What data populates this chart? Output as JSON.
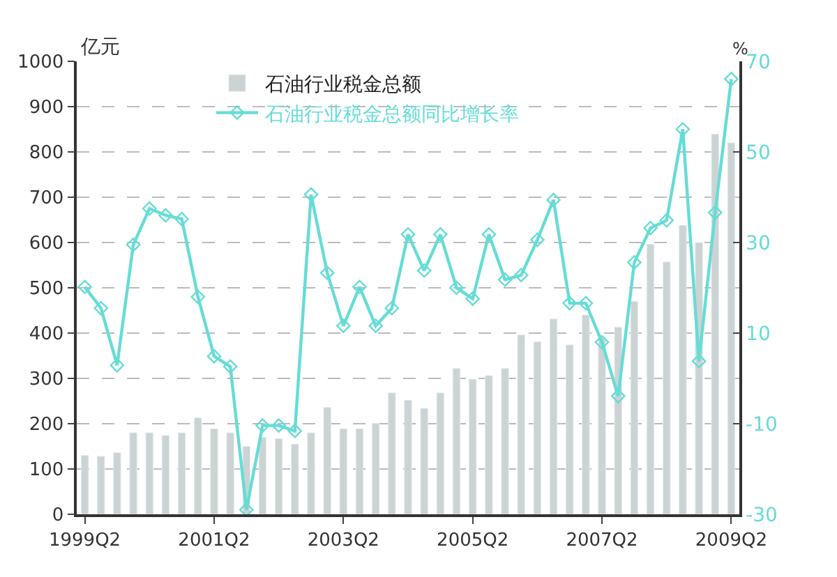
{
  "chart_data": {
    "type": "bar",
    "xlabel": null,
    "ylabel": "亿元",
    "y2label": "%",
    "categories": [
      "1999Q2",
      null,
      null,
      null,
      null,
      null,
      null,
      null,
      "2001Q2",
      null,
      null,
      null,
      null,
      null,
      null,
      null,
      "2003Q2",
      null,
      null,
      null,
      null,
      null,
      null,
      null,
      "2005Q2",
      null,
      null,
      null,
      null,
      null,
      null,
      null,
      "2007Q2",
      null,
      null,
      null,
      null,
      null,
      null,
      null,
      "2009Q2"
    ],
    "series": [
      {
        "name": "石油行业税金总额",
        "color": "#ccd3d3",
        "values": [
          130,
          128,
          136,
          180,
          180,
          174,
          180,
          213,
          189,
          180,
          150,
          170,
          167,
          155,
          180,
          236,
          189,
          189,
          201,
          268,
          252,
          234,
          268,
          322,
          298,
          306,
          322,
          396,
          381,
          431,
          374,
          440,
          390,
          413,
          470,
          596,
          557,
          638,
          600,
          839,
          820
        ]
      },
      {
        "name": "石油行业税金总额同比增长率",
        "type": "line",
        "axis": "y2",
        "color": "#66dcd6",
        "marker": "diamond",
        "values": [
          20.2,
          15.5,
          2.9,
          29.5,
          37.5,
          36,
          35.2,
          18,
          4.9,
          2.6,
          -29,
          -10.4,
          -10.4,
          -11.6,
          40.6,
          23.3,
          11.6,
          20.2,
          11.6,
          15.5,
          31.8,
          23.8,
          31.8,
          20,
          17.6,
          31.8,
          21.8,
          22.8,
          30.6,
          39.4,
          16.6,
          16.6,
          8,
          -3.9,
          25.6,
          33.2,
          34.9,
          55,
          3.8,
          36.6,
          66.1
        ]
      }
    ],
    "ylim": [
      0,
      1000
    ],
    "yticks": [
      0,
      100,
      200,
      300,
      400,
      500,
      600,
      700,
      800,
      900,
      1000
    ],
    "y2lim": [
      -30,
      70
    ],
    "y2ticks": [
      -30,
      -10,
      10,
      30,
      50,
      70
    ],
    "grid": "y",
    "legend": "top"
  }
}
